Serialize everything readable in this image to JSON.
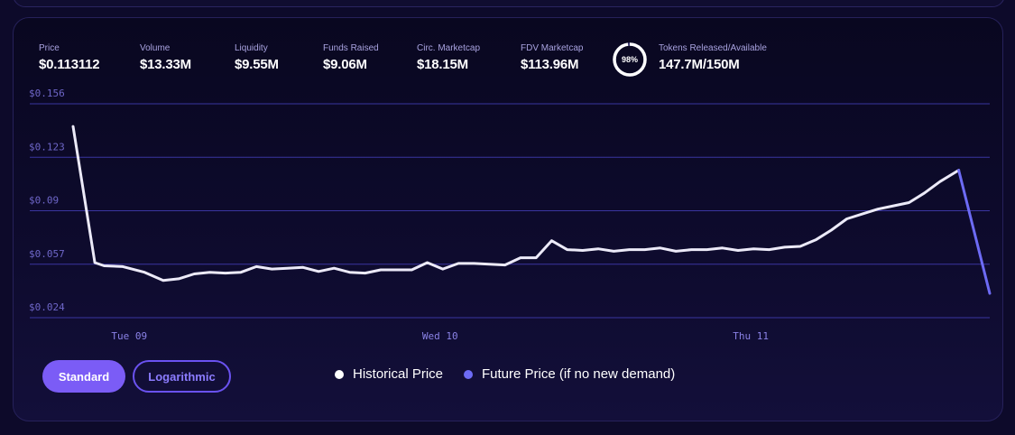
{
  "stats": [
    {
      "label": "Price",
      "value": "$0.113112"
    },
    {
      "label": "Volume",
      "value": "$13.33M"
    },
    {
      "label": "Liquidity",
      "value": "$9.55M"
    },
    {
      "label": "Funds Raised",
      "value": "$9.06M"
    },
    {
      "label": "Circ. Marketcap",
      "value": "$18.15M"
    },
    {
      "label": "FDV Marketcap",
      "value": "$113.96M"
    },
    {
      "label": "Tokens Released/Available",
      "value": "147.7M/150M"
    }
  ],
  "release_ring": {
    "label": "98%",
    "percent": 98
  },
  "toggle": {
    "standard": "Standard",
    "logarithmic": "Logarithmic",
    "active": "Standard"
  },
  "legend": {
    "historical": "Historical Price",
    "future": "Future Price (if no new demand)"
  },
  "colors": {
    "historical": "#eceaf8",
    "future": "#6d6bf5",
    "accent": "#7b5cf6",
    "grid": "#3a35a0"
  },
  "chart_data": {
    "type": "line",
    "yticks": [
      "$0.156",
      "$0.123",
      "$0.09",
      "$0.057",
      "$0.024"
    ],
    "ytick_values": [
      0.156,
      0.123,
      0.09,
      0.057,
      0.024
    ],
    "xticks": [
      "Tue 09",
      "Wed 10",
      "Thu 11"
    ],
    "xtick_values": [
      9,
      10,
      11
    ],
    "ylim": [
      0.024,
      0.156
    ],
    "xlim": [
      8.81,
      11.76
    ],
    "grid": true,
    "series": [
      {
        "name": "Historical Price",
        "x": [
          8.81,
          8.88,
          8.91,
          8.97,
          9.04,
          9.1,
          9.15,
          9.2,
          9.25,
          9.3,
          9.35,
          9.4,
          9.45,
          9.5,
          9.55,
          9.6,
          9.65,
          9.7,
          9.75,
          9.8,
          9.85,
          9.9,
          9.95,
          10.0,
          10.05,
          10.1,
          10.15,
          10.2,
          10.25,
          10.3,
          10.35,
          10.4,
          10.45,
          10.5,
          10.55,
          10.6,
          10.65,
          10.7,
          10.75,
          10.8,
          10.85,
          10.9,
          10.95,
          11.0,
          11.05,
          11.1,
          11.15,
          11.2,
          11.25,
          11.3,
          11.35,
          11.4,
          11.45,
          11.5,
          11.55,
          11.6,
          11.66
        ],
        "y": [
          0.142,
          0.058,
          0.056,
          0.0555,
          0.052,
          0.047,
          0.048,
          0.051,
          0.052,
          0.0515,
          0.052,
          0.0555,
          0.054,
          0.0545,
          0.055,
          0.0525,
          0.0545,
          0.052,
          0.0515,
          0.0535,
          0.0535,
          0.0535,
          0.058,
          0.054,
          0.0575,
          0.0575,
          0.057,
          0.0565,
          0.061,
          0.061,
          0.0715,
          0.066,
          0.0655,
          0.0665,
          0.065,
          0.066,
          0.066,
          0.067,
          0.065,
          0.066,
          0.066,
          0.067,
          0.0655,
          0.0665,
          0.066,
          0.0675,
          0.068,
          0.072,
          0.078,
          0.085,
          0.088,
          0.091,
          0.093,
          0.095,
          0.101,
          0.108,
          0.115
        ]
      },
      {
        "name": "Future Price (if no new demand)",
        "x": [
          11.66,
          11.76
        ],
        "y": [
          0.115,
          0.039
        ]
      }
    ]
  }
}
